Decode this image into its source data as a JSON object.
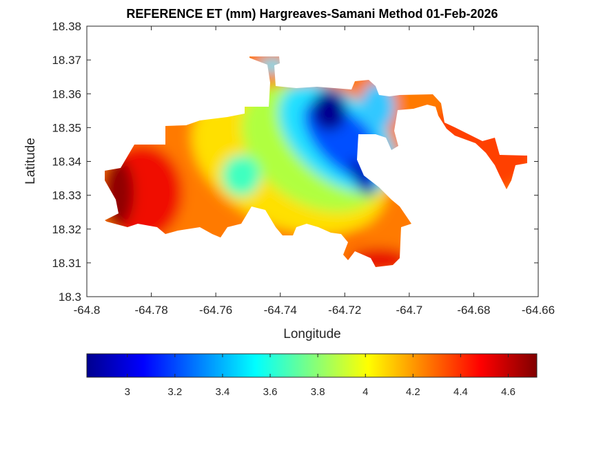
{
  "chart_data": {
    "type": "contour",
    "title": "REFERENCE ET (mm) Hargreaves-Samani Method  01-Feb-2026",
    "xlabel": "Longitude",
    "ylabel": "Latitude",
    "xlim": [
      -64.8,
      -64.66
    ],
    "ylim": [
      18.3,
      18.38
    ],
    "xticks": [
      "-64.8",
      "-64.78",
      "-64.76",
      "-64.74",
      "-64.72",
      "-64.7",
      "-64.68",
      "-64.66"
    ],
    "yticks": [
      "18.3",
      "18.31",
      "18.32",
      "18.33",
      "18.34",
      "18.35",
      "18.36",
      "18.37",
      "18.38"
    ],
    "colormap": "jet",
    "clim": [
      2.83,
      4.72
    ],
    "colorbar_location": "bottom",
    "colorbar_ticks": [
      "3",
      "3.2",
      "3.4",
      "3.6",
      "3.8",
      "4",
      "4.2",
      "4.4",
      "4.6"
    ],
    "grid": false,
    "regions": [
      {
        "area": "west",
        "value_range": [
          4.3,
          4.7
        ]
      },
      {
        "area": "central-west",
        "value_range": [
          3.6,
          4.1
        ]
      },
      {
        "area": "central-north",
        "value_range": [
          2.85,
          3.3
        ]
      },
      {
        "area": "east-strip",
        "value_range": [
          4.3,
          4.4
        ]
      },
      {
        "area": "south",
        "value_range": [
          4.2,
          4.5
        ]
      }
    ]
  }
}
